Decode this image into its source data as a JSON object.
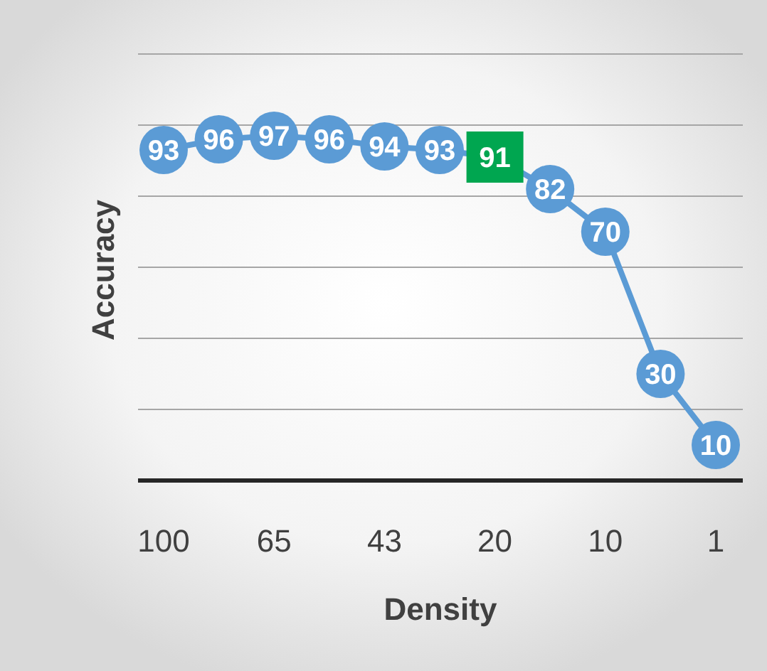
{
  "chart_data": {
    "type": "line",
    "xlabel": "Density",
    "ylabel": "Accuracy",
    "categories": [
      "100",
      null,
      "65",
      null,
      "43",
      null,
      "20",
      null,
      "10",
      null,
      "1"
    ],
    "series": [
      {
        "color": "#5b9bd5",
        "marker": "circle",
        "values": [
          93,
          96,
          97,
          96,
          94,
          93,
          91,
          82,
          70,
          30,
          10
        ],
        "value_labels": [
          "93",
          "96",
          "97",
          "96",
          "94",
          "93",
          null,
          "82",
          "70",
          "30",
          "10"
        ]
      },
      {
        "type": "scatter",
        "color": "#00a650",
        "marker": "square",
        "x": [
          "20"
        ],
        "values": [
          91
        ],
        "value_labels": [
          "91"
        ]
      }
    ],
    "ylim": [
      0,
      120
    ],
    "yticks": [
      {
        "value": 0,
        "label": null
      },
      {
        "value": 20,
        "label": null
      },
      {
        "value": 40,
        "label": null
      },
      {
        "value": 60,
        "label": null
      },
      {
        "value": 80,
        "label": null
      },
      {
        "value": 100,
        "label": null
      },
      {
        "value": 120,
        "label": null
      }
    ],
    "grid": "y",
    "tick_labels": "x"
  }
}
